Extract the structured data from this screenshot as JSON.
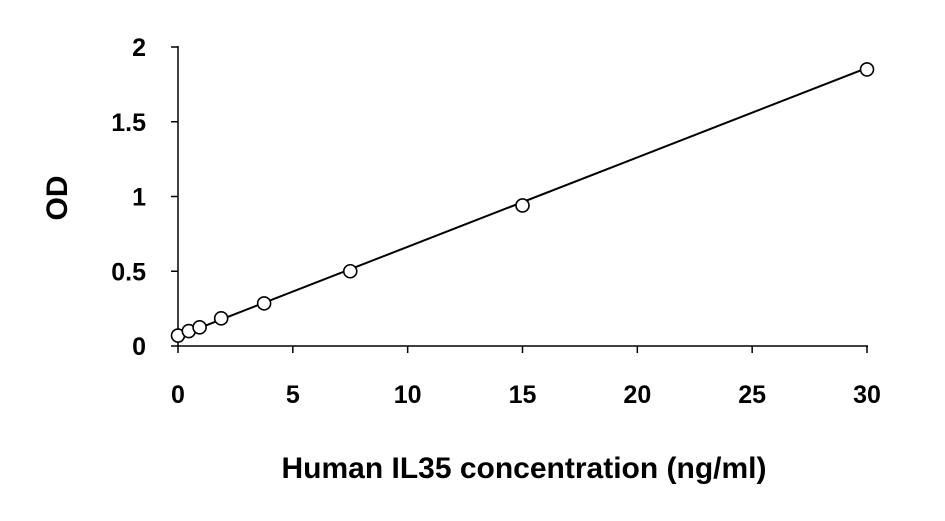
{
  "chart_data": {
    "type": "scatter",
    "title": "",
    "xlabel": "Human IL35 concentration (ng/ml)",
    "ylabel": "OD",
    "xlim": [
      0,
      30
    ],
    "ylim": [
      0,
      2
    ],
    "x_ticks": [
      0,
      5,
      10,
      15,
      20,
      25,
      30
    ],
    "y_ticks": [
      0,
      0.5,
      1,
      1.5,
      2
    ],
    "x_tick_labels": [
      "0",
      "5",
      "10",
      "15",
      "20",
      "25",
      "30"
    ],
    "y_tick_labels": [
      "0",
      "0.5",
      "1",
      "1.5",
      "2"
    ],
    "grid": false,
    "legend": "none",
    "series": [
      {
        "x": [
          0,
          0.47,
          0.94,
          1.88,
          3.75,
          7.5,
          15,
          30
        ],
        "y": [
          0.07,
          0.1,
          0.125,
          0.185,
          0.285,
          0.5,
          0.94,
          1.85
        ]
      }
    ],
    "trendline": {
      "type": "linear",
      "x": [
        0,
        30
      ],
      "y": [
        0.065,
        1.86
      ]
    },
    "colors": {
      "axis": "#000000",
      "marker_stroke": "#000000",
      "marker_fill": "#ffffff",
      "line": "#000000"
    }
  }
}
